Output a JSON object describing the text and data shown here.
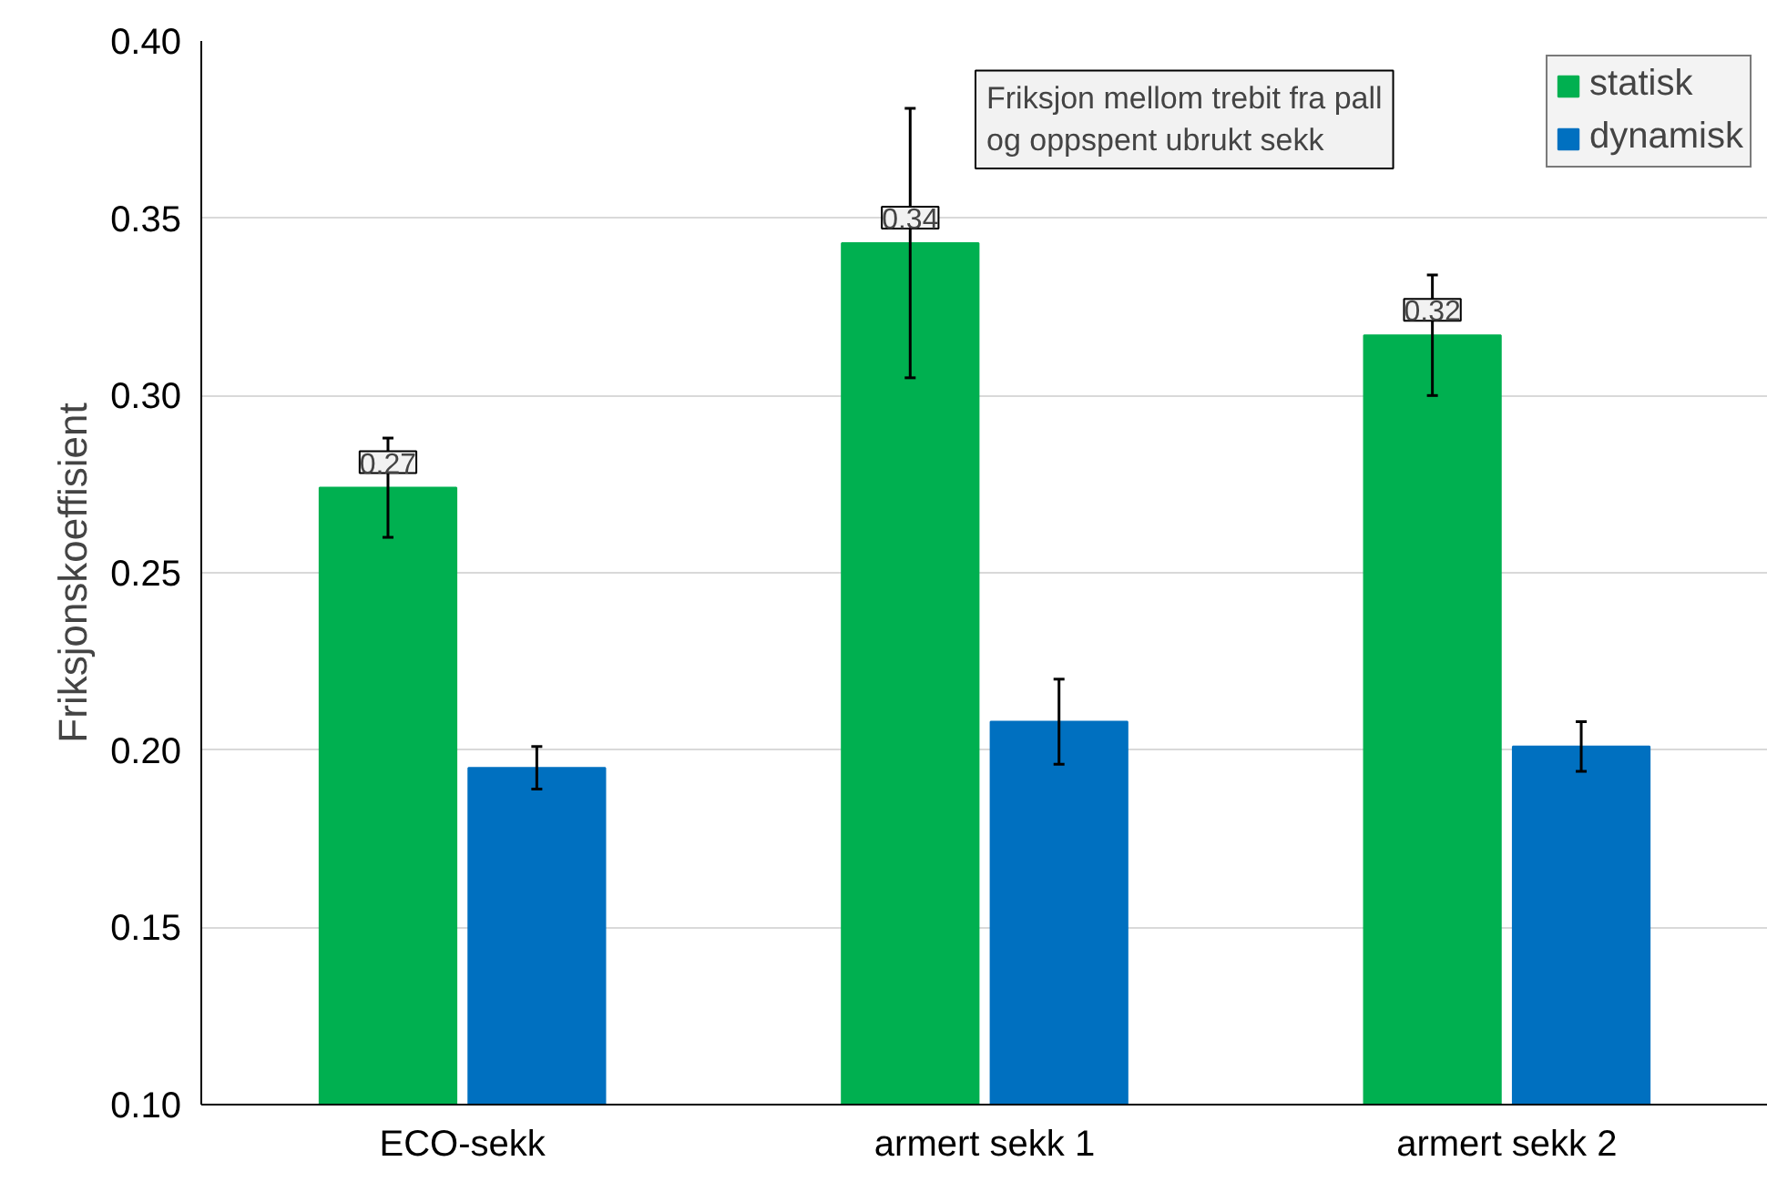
{
  "chart_data": {
    "type": "bar",
    "ylabel": "Friksjonskoeffisient",
    "legend_title": "Friksjon mellom trebit fra pall\nog oppspent ubrukt sekk",
    "categories": [
      "ECO-sekk",
      "armert sekk 1",
      "armert sekk 2"
    ],
    "series": [
      {
        "name": "statisk",
        "color": "#00b050",
        "values": [
          0.274,
          0.343,
          0.317
        ],
        "errors": [
          [
            0.26,
            0.288
          ],
          [
            0.305,
            0.381
          ],
          [
            0.3,
            0.334
          ]
        ],
        "value_labels": [
          "0.27",
          "0.34",
          "0.32"
        ]
      },
      {
        "name": "dynamisk",
        "color": "#0070c0",
        "values": [
          0.195,
          0.208,
          0.201
        ],
        "errors": [
          [
            0.189,
            0.201
          ],
          [
            0.196,
            0.22
          ],
          [
            0.194,
            0.208
          ]
        ]
      }
    ],
    "ylim": [
      0.1,
      0.4
    ],
    "yticks": [
      {
        "value": 0.1,
        "label": "0.10"
      },
      {
        "value": 0.15,
        "label": "0.15"
      },
      {
        "value": 0.2,
        "label": "0.20"
      },
      {
        "value": 0.25,
        "label": "0.25"
      },
      {
        "value": 0.3,
        "label": "0.30"
      },
      {
        "value": 0.35,
        "label": "0.35"
      },
      {
        "value": 0.4,
        "label": "0.40"
      }
    ],
    "grid": "y",
    "legend": "top right"
  }
}
